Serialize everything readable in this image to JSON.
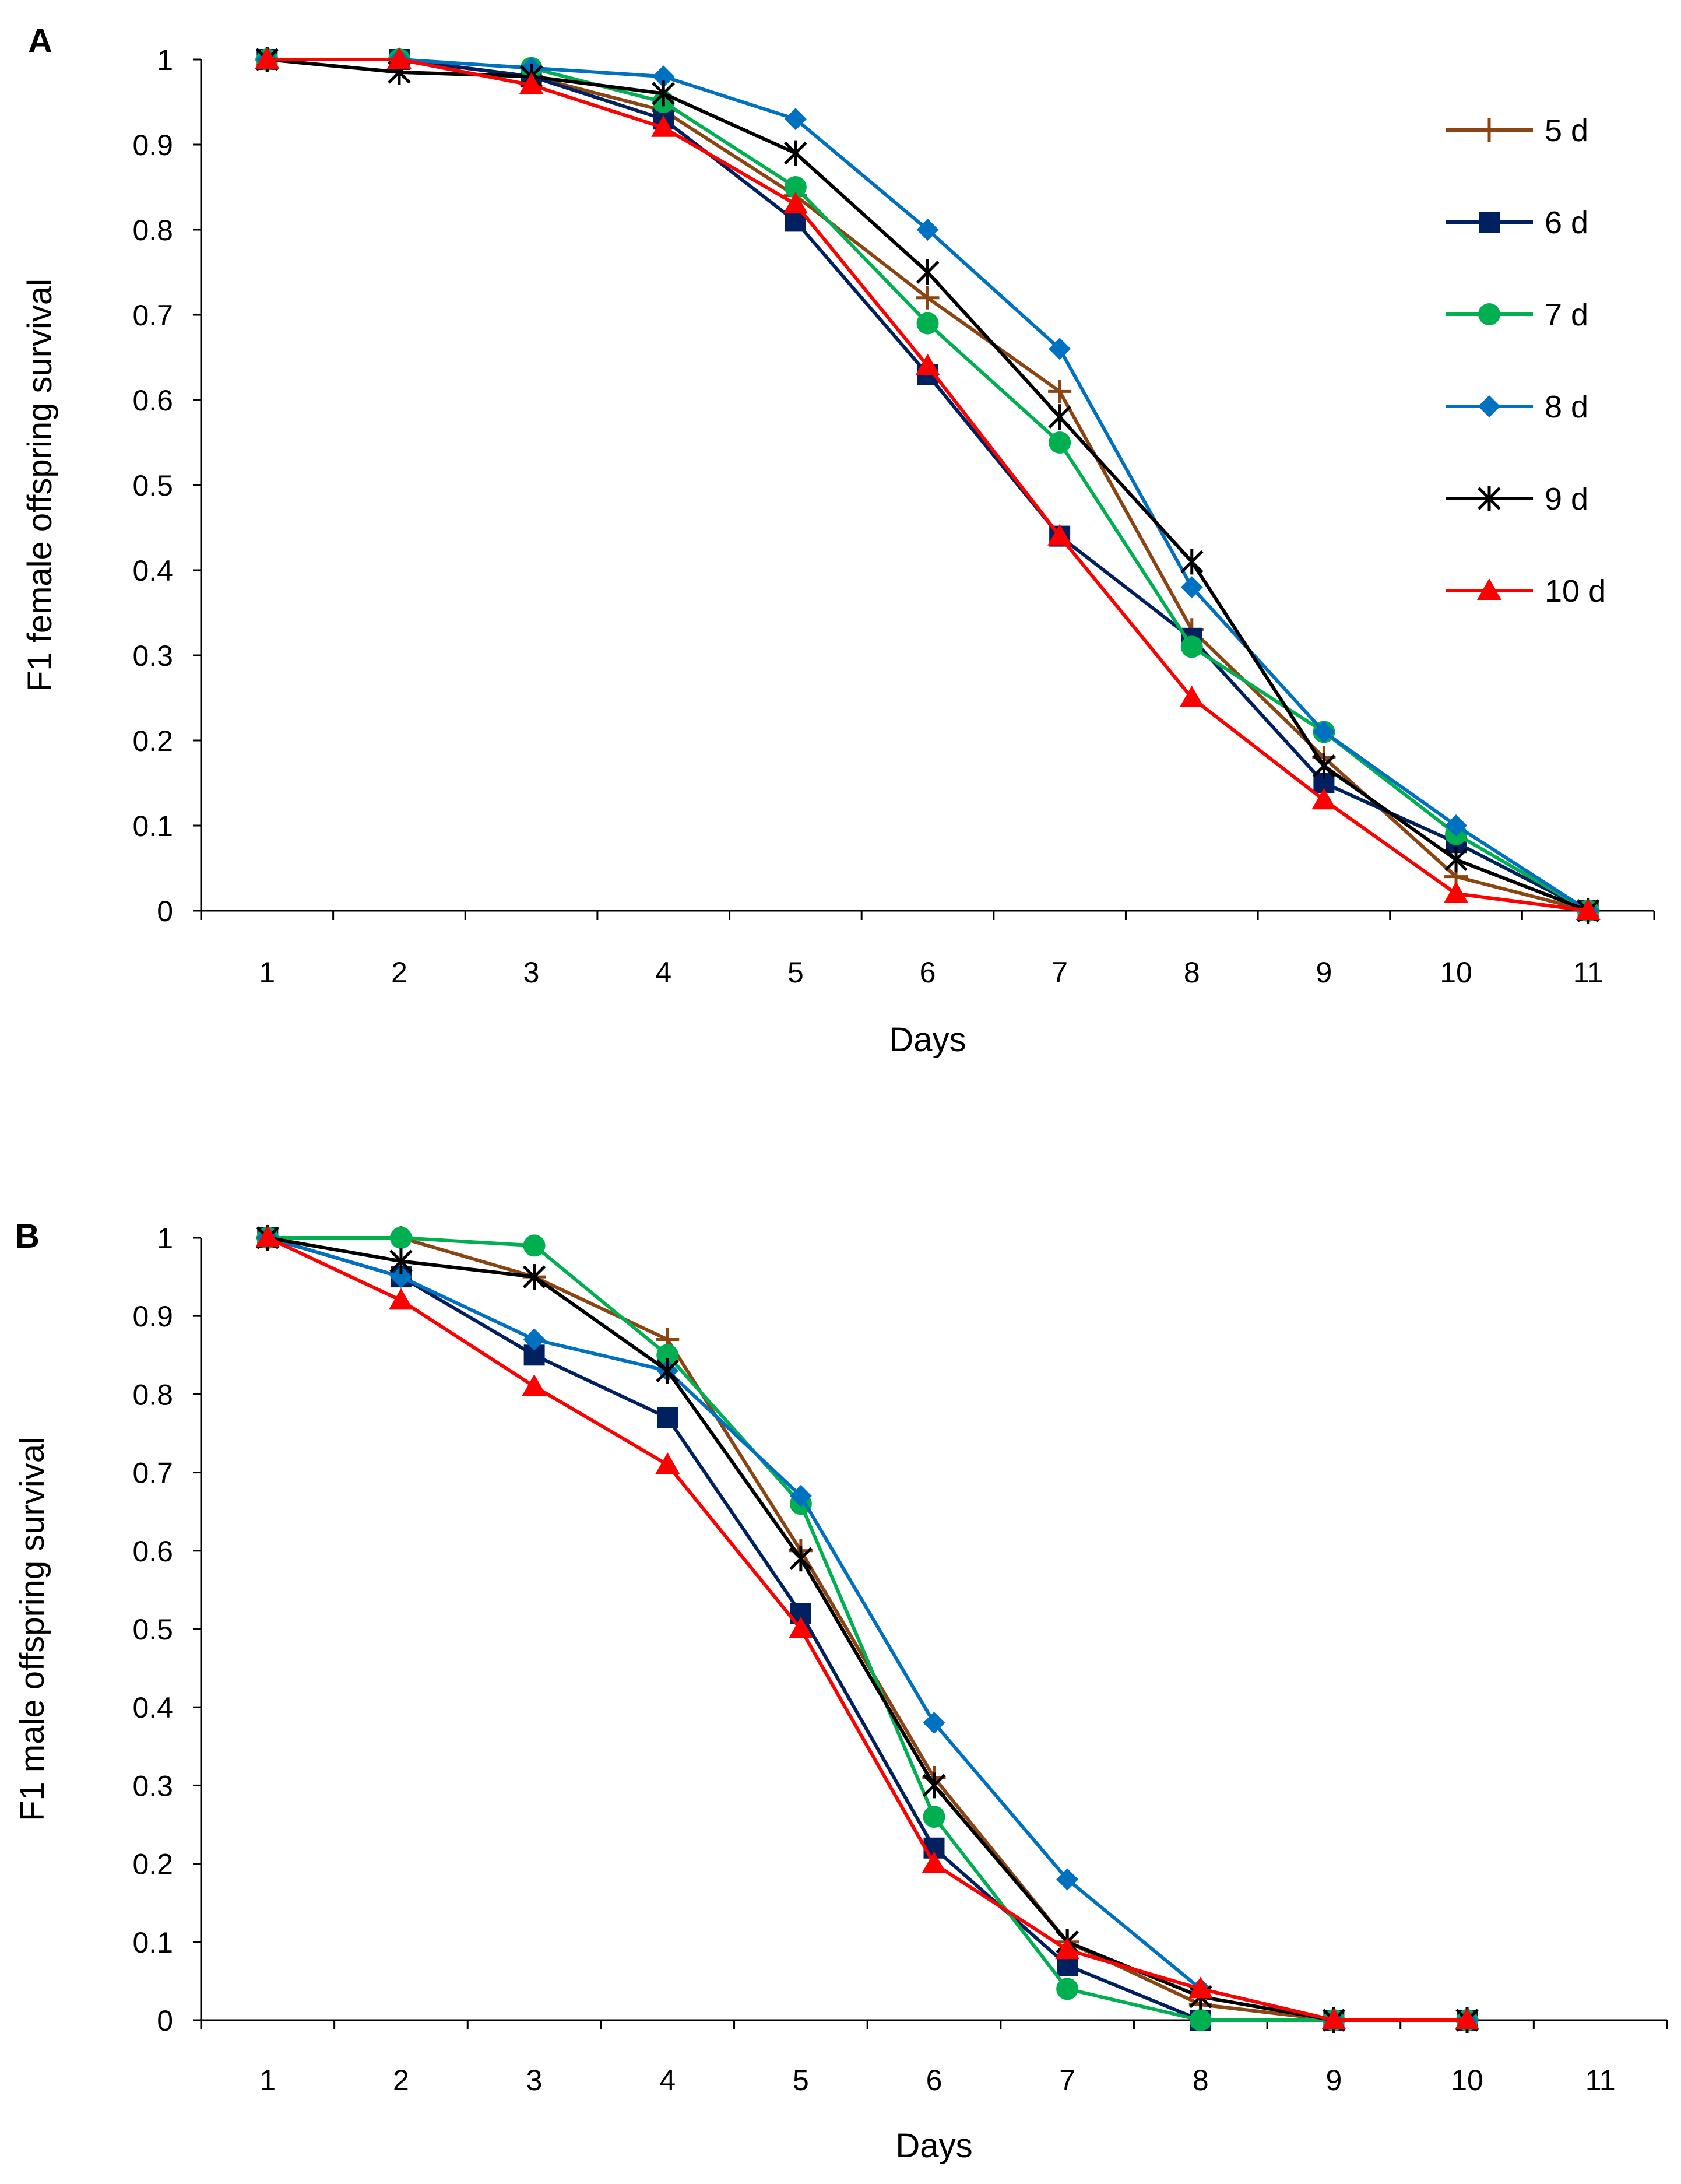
{
  "chart_data": [
    {
      "type": "line",
      "panel_label": "A",
      "title": "",
      "xlabel": "Days",
      "ylabel": "F1 female offspring survival",
      "x": [
        1,
        2,
        3,
        4,
        5,
        6,
        7,
        8,
        9,
        10,
        11
      ],
      "xlim": [
        0.5,
        11.5
      ],
      "ylim": [
        0,
        1
      ],
      "yticks": [
        "0",
        "0.1",
        "0.2",
        "0.3",
        "0.4",
        "0.5",
        "0.6",
        "0.7",
        "0.8",
        "0.9",
        "1"
      ],
      "xticks": [
        "1",
        "2",
        "3",
        "4",
        "5",
        "6",
        "7",
        "8",
        "9",
        "10",
        "11"
      ],
      "grid": false,
      "legend_position": "top-right",
      "series": [
        {
          "name": "5 d",
          "color": "#8B4513",
          "marker": "plus",
          "values": [
            1,
            1,
            0.98,
            0.94,
            0.84,
            0.72,
            0.61,
            0.33,
            0.18,
            0.04,
            0
          ]
        },
        {
          "name": "6 d",
          "color": "#002060",
          "marker": "square",
          "values": [
            1,
            1,
            0.98,
            0.93,
            0.81,
            0.63,
            0.44,
            0.32,
            0.15,
            0.08,
            0
          ]
        },
        {
          "name": "7 d",
          "color": "#00B050",
          "marker": "circle",
          "values": [
            1,
            1,
            0.99,
            0.95,
            0.85,
            0.69,
            0.55,
            0.31,
            0.21,
            0.09,
            0
          ]
        },
        {
          "name": "8 d",
          "color": "#0070C0",
          "marker": "diamond",
          "values": [
            1,
            1,
            0.99,
            0.98,
            0.93,
            0.8,
            0.66,
            0.38,
            0.21,
            0.1,
            0
          ]
        },
        {
          "name": "9 d",
          "color": "#000000",
          "marker": "star",
          "values": [
            1,
            0.985,
            0.98,
            0.96,
            0.89,
            0.75,
            0.58,
            0.41,
            0.17,
            0.06,
            0
          ]
        },
        {
          "name": "10 d",
          "color": "#FF0000",
          "marker": "triangle",
          "values": [
            1,
            1,
            0.97,
            0.92,
            0.83,
            0.64,
            0.44,
            0.25,
            0.13,
            0.02,
            0
          ]
        }
      ]
    },
    {
      "type": "line",
      "panel_label": "B",
      "title": "",
      "xlabel": "Days",
      "ylabel": "F1 male offspring survival",
      "x": [
        1,
        2,
        3,
        4,
        5,
        6,
        7,
        8,
        9,
        10
      ],
      "xlim": [
        0.5,
        11.5
      ],
      "ylim": [
        0,
        1
      ],
      "yticks": [
        "0",
        "0.1",
        "0.2",
        "0.3",
        "0.4",
        "0.5",
        "0.6",
        "0.7",
        "0.8",
        "0.9",
        "1"
      ],
      "xticks": [
        "1",
        "2",
        "3",
        "4",
        "5",
        "6",
        "7",
        "8",
        "9",
        "10",
        "11"
      ],
      "grid": false,
      "legend_position": "none",
      "series": [
        {
          "name": "5 d",
          "color": "#8B4513",
          "marker": "plus",
          "values": [
            1,
            1,
            0.95,
            0.87,
            0.6,
            0.31,
            0.1,
            0.02,
            0,
            0
          ]
        },
        {
          "name": "6 d",
          "color": "#002060",
          "marker": "square",
          "values": [
            1,
            0.95,
            0.85,
            0.77,
            0.52,
            0.22,
            0.07,
            0,
            0,
            0
          ]
        },
        {
          "name": "7 d",
          "color": "#00B050",
          "marker": "circle",
          "values": [
            1,
            1,
            0.99,
            0.85,
            0.66,
            0.26,
            0.04,
            0,
            0,
            0
          ]
        },
        {
          "name": "8 d",
          "color": "#0070C0",
          "marker": "diamond",
          "values": [
            1,
            0.95,
            0.87,
            0.83,
            0.67,
            0.38,
            0.18,
            0.04,
            0,
            0
          ]
        },
        {
          "name": "9 d",
          "color": "#000000",
          "marker": "star",
          "values": [
            1,
            0.97,
            0.95,
            0.83,
            0.59,
            0.3,
            0.1,
            0.03,
            0,
            0
          ]
        },
        {
          "name": "10 d",
          "color": "#FF0000",
          "marker": "triangle",
          "values": [
            1,
            0.92,
            0.81,
            0.71,
            0.5,
            0.2,
            0.09,
            0.04,
            0,
            0
          ]
        }
      ]
    }
  ]
}
